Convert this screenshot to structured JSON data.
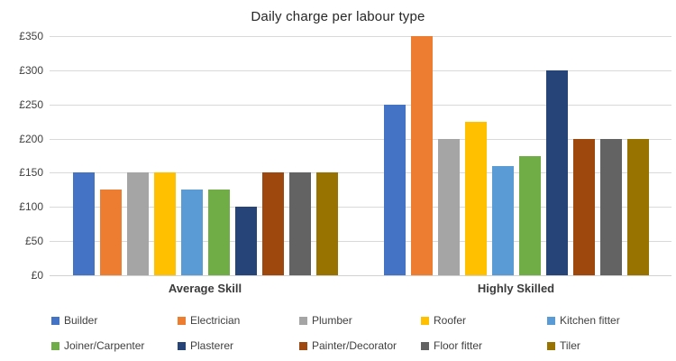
{
  "title": "Daily charge per labour type",
  "chart_data": {
    "type": "bar",
    "title": "Daily charge per labour type",
    "categories": [
      "Average Skill",
      "Highly Skilled"
    ],
    "series": [
      {
        "name": "Builder",
        "color": "#4472C4",
        "values": [
          150,
          250
        ]
      },
      {
        "name": "Electrician",
        "color": "#ED7D31",
        "values": [
          125,
          350
        ]
      },
      {
        "name": "Plumber",
        "color": "#A5A5A5",
        "values": [
          150,
          200
        ]
      },
      {
        "name": "Roofer",
        "color": "#FFC000",
        "values": [
          150,
          225
        ]
      },
      {
        "name": "Kitchen fitter",
        "color": "#5B9BD5",
        "values": [
          125,
          160
        ]
      },
      {
        "name": "Joiner/Carpenter",
        "color": "#70AD47",
        "values": [
          125,
          175
        ]
      },
      {
        "name": "Plasterer",
        "color": "#264478",
        "values": [
          100,
          300
        ]
      },
      {
        "name": "Painter/Decorator",
        "color": "#9E480E",
        "values": [
          150,
          200
        ]
      },
      {
        "name": "Floor fitter",
        "color": "#636363",
        "values": [
          150,
          200
        ]
      },
      {
        "name": "Tiler",
        "color": "#997300",
        "values": [
          150,
          200
        ]
      }
    ],
    "y_axis": {
      "min": 0,
      "max": 350,
      "step": 50,
      "tick_labels": [
        "£0",
        "£50",
        "£100",
        "£150",
        "£200",
        "£250",
        "£300",
        "£350"
      ]
    },
    "legend_position": "bottom",
    "legend_rows": [
      [
        "Builder",
        "Electrician",
        "Plumber",
        "Roofer",
        "Kitchen fitter"
      ],
      [
        "Joiner/Carpenter",
        "Plasterer",
        "Painter/Decorator",
        "Floor fitter",
        "Tiler"
      ]
    ],
    "grid": true,
    "background": "#FFFFFF",
    "gridline_color": "#D9D9D9",
    "text_color": "#404040"
  }
}
